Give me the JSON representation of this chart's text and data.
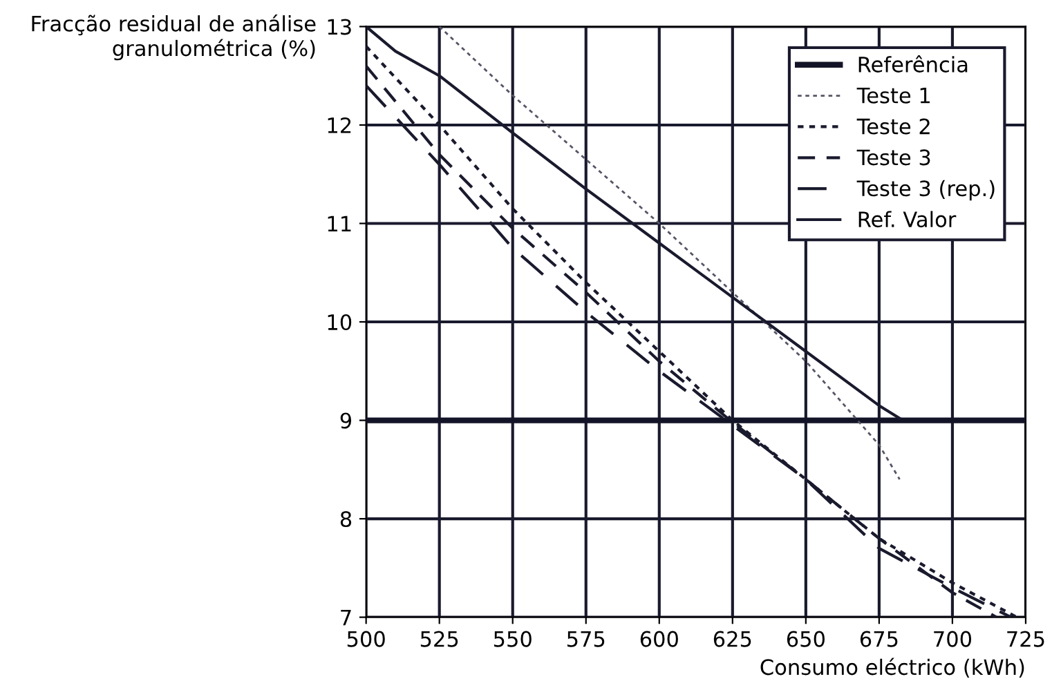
{
  "chart_data": {
    "type": "line",
    "xlabel": "Consumo eléctrico (kWh)",
    "ylabel": "Fracção residual de análise\ngranulométrica (%)",
    "xlim": [
      500,
      725
    ],
    "ylim": [
      7,
      13
    ],
    "xticks": [
      500,
      525,
      550,
      575,
      600,
      625,
      650,
      675,
      700,
      725
    ],
    "yticks": [
      7,
      8,
      9,
      10,
      11,
      12,
      13
    ],
    "grid": true,
    "legend": "top right",
    "marker": "none",
    "series": [
      {
        "name": "Referência",
        "color": "#141428",
        "line_style": "solid",
        "x": [
          500,
          725
        ],
        "values": [
          9,
          9
        ]
      },
      {
        "name": "Teste 1",
        "color": "#555566",
        "line_style": "dotted",
        "x": [
          525,
          550,
          575,
          600,
          625,
          650,
          675,
          682
        ],
        "values": [
          13,
          12.3,
          11.65,
          11.0,
          10.3,
          9.6,
          8.75,
          8.4
        ]
      },
      {
        "name": "Teste 2",
        "color": "#1a1a2e",
        "line_style": "dotted",
        "x": [
          500,
          525,
          550,
          575,
          600,
          625,
          650,
          675,
          700,
          722
        ],
        "values": [
          12.8,
          12.0,
          11.15,
          10.4,
          9.7,
          9.0,
          8.4,
          7.8,
          7.35,
          7.0
        ]
      },
      {
        "name": "Teste 3",
        "color": "#1a1a2e",
        "line_style": "dashed",
        "x": [
          500,
          525,
          550,
          575,
          600,
          625,
          650,
          675,
          700,
          715
        ],
        "values": [
          12.6,
          11.7,
          10.95,
          10.3,
          9.6,
          8.98,
          8.4,
          7.8,
          7.25,
          7.0
        ]
      },
      {
        "name": "Teste 3 (rep.)",
        "color": "#1a1a2e",
        "line_style": "dashed",
        "x": [
          500,
          525,
          550,
          575,
          600,
          625,
          650,
          675,
          700,
          720
        ],
        "values": [
          12.4,
          11.6,
          10.75,
          10.1,
          9.5,
          8.95,
          8.4,
          7.7,
          7.3,
          7.0
        ]
      },
      {
        "name": "Ref. Valor",
        "color": "#1a1a2e",
        "line_style": "solid",
        "x": [
          500,
          510,
          525,
          550,
          575,
          600,
          625,
          650,
          675,
          682
        ],
        "values": [
          13,
          12.75,
          12.5,
          11.92,
          11.35,
          10.8,
          10.25,
          9.7,
          9.15,
          9.02
        ]
      }
    ]
  }
}
